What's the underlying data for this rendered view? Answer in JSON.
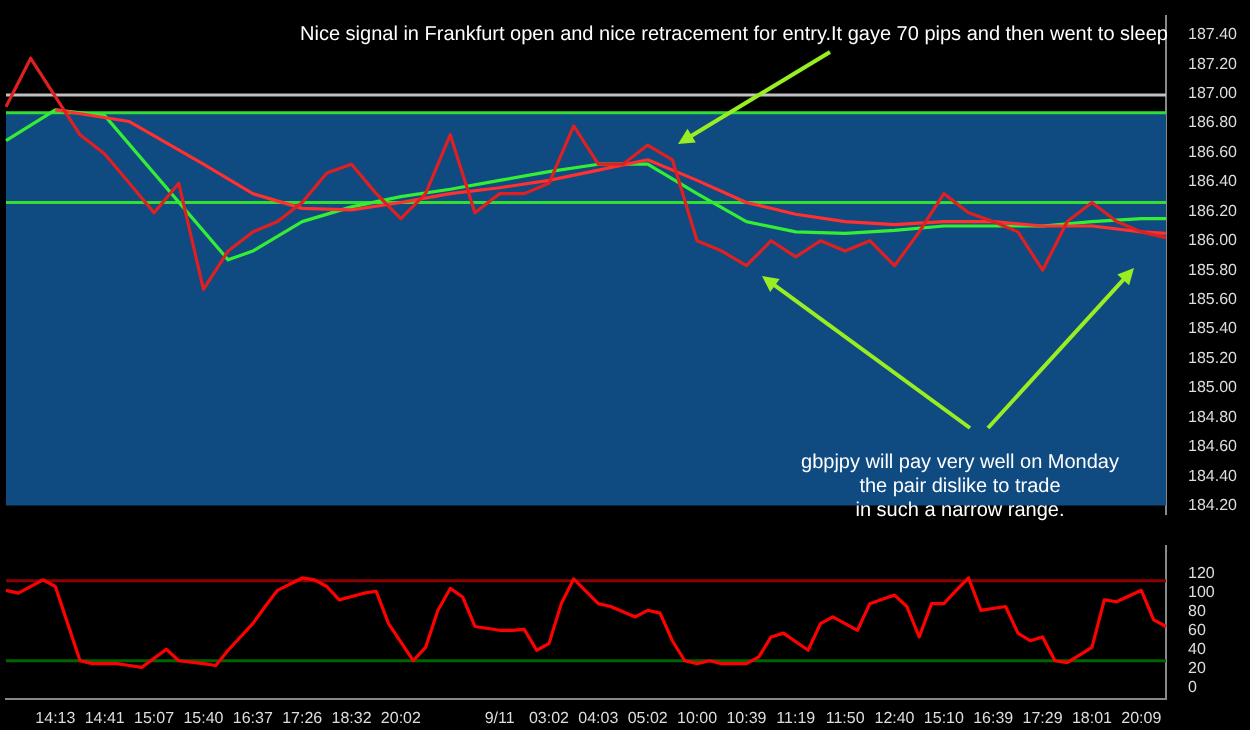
{
  "chart_data": [
    {
      "type": "line",
      "categories": [
        null,
        null,
        null,
        null,
        null,
        null,
        null,
        null,
        null,
        null,
        null,
        null,
        null,
        null,
        null,
        null,
        null,
        null,
        null,
        null,
        null,
        null,
        null,
        null,
        null,
        null,
        null,
        null,
        null,
        null,
        null,
        null,
        null,
        null,
        null,
        null,
        null,
        null,
        null,
        null,
        null,
        null,
        null,
        null,
        null,
        null,
        null,
        null
      ],
      "series": [
        {
          "color": "#e02020",
          "values": [
            186.91,
            187.24,
            186.98,
            186.72,
            186.59,
            186.39,
            186.19,
            186.39,
            185.67,
            185.93,
            186.06,
            186.13,
            186.26,
            186.46,
            186.52,
            186.32,
            186.15,
            186.32,
            186.72,
            186.19,
            186.32,
            186.32,
            186.39,
            186.78,
            186.52,
            186.52,
            186.65,
            186.55,
            186.0,
            185.93,
            185.83,
            186.0,
            185.89,
            186.0,
            185.93,
            186.0,
            185.83,
            186.06,
            186.32,
            186.19,
            186.13,
            186.06,
            185.8,
            186.13,
            186.26,
            186.13,
            186.06,
            186.02
          ]
        },
        {
          "color": "#ff3030",
          "values": [
            null,
            null,
            186.89,
            null,
            null,
            186.81,
            null,
            null,
            186.52,
            null,
            186.32,
            null,
            186.22,
            null,
            186.21,
            null,
            186.26,
            null,
            186.32,
            null,
            186.36,
            null,
            186.41,
            null,
            186.48,
            null,
            186.55,
            null,
            186.41,
            null,
            186.26,
            null,
            186.18,
            null,
            186.13,
            null,
            186.11,
            null,
            186.13,
            null,
            186.13,
            null,
            186.1,
            null,
            186.1,
            null,
            186.06,
            186.05
          ]
        },
        {
          "color": "#33ee33",
          "values": [
            186.68,
            null,
            186.89,
            null,
            186.85,
            null,
            null,
            null,
            null,
            185.87,
            185.93,
            null,
            186.13,
            null,
            186.23,
            null,
            186.3,
            null,
            186.35,
            null,
            186.41,
            null,
            186.47,
            null,
            186.52,
            null,
            186.52,
            null,
            186.32,
            null,
            186.13,
            null,
            186.06,
            null,
            186.05,
            null,
            186.07,
            null,
            186.1,
            null,
            186.1,
            null,
            186.1,
            null,
            186.13,
            null,
            186.15,
            186.15
          ]
        }
      ],
      "ylim": [
        184.14,
        187.53
      ],
      "yticks": [
        {
          "value": 187.4,
          "label": "187.40"
        },
        {
          "value": 187.2,
          "label": "187.20"
        },
        {
          "value": 187.0,
          "label": "187.00"
        },
        {
          "value": 186.8,
          "label": "186.80"
        },
        {
          "value": 186.6,
          "label": "186.60"
        },
        {
          "value": 186.4,
          "label": "186.40"
        },
        {
          "value": 186.2,
          "label": "186.20"
        },
        {
          "value": 186.0,
          "label": "186.00"
        },
        {
          "value": 185.8,
          "label": "185.80"
        },
        {
          "value": 185.6,
          "label": "185.60"
        },
        {
          "value": 185.4,
          "label": "185.40"
        },
        {
          "value": 185.2,
          "label": "185.20"
        },
        {
          "value": 185.0,
          "label": "185.00"
        },
        {
          "value": 184.8,
          "label": "184.80"
        },
        {
          "value": 184.6,
          "label": "184.60"
        },
        {
          "value": 184.4,
          "label": "184.40"
        },
        {
          "value": 184.2,
          "label": "184.20"
        }
      ],
      "ref_lines": [
        {
          "axis": "y",
          "value": 186.99,
          "color": "#c0c0c0"
        },
        {
          "axis": "y",
          "value": 186.87,
          "color": "#33dd33"
        },
        {
          "axis": "y",
          "value": 186.26,
          "color": "#33dd33"
        }
      ],
      "bands": [
        {
          "axis": "y",
          "from": 184.2,
          "to": 186.26,
          "color": "#0f4a80"
        },
        {
          "axis": "y",
          "from": 186.26,
          "to": 186.87,
          "color": "#0f4a80"
        }
      ],
      "annotations": [
        "Nice signal in Frankfurt open and nice retracement for entry.It gaye 70 pips and then went to sleep",
        "gbpjpy will pay very well on Monday\nthe pair dislike to trade\nin such a narrow range."
      ],
      "tick_labels": "y"
    },
    {
      "type": "line",
      "categories": [
        null,
        null,
        null,
        null,
        "14:13",
        null,
        null,
        null,
        "14:41",
        null,
        null,
        null,
        "15:07",
        null,
        null,
        null,
        "15:40",
        null,
        null,
        null,
        "16:37",
        null,
        null,
        null,
        "17:26",
        null,
        null,
        null,
        "18:32",
        null,
        null,
        null,
        "20:02",
        null,
        null,
        null,
        null,
        null,
        null,
        null,
        "9/11",
        null,
        null,
        null,
        "03:02",
        null,
        null,
        null,
        "04:03",
        null,
        null,
        null,
        "05:02",
        null,
        null,
        null,
        "10:00",
        null,
        null,
        null,
        "10:39",
        null,
        null,
        null,
        "11:19",
        null,
        null,
        null,
        "11:50",
        null,
        null,
        null,
        "12:40",
        null,
        null,
        null,
        "15:10",
        null,
        null,
        null,
        "16:39",
        null,
        null,
        null,
        "17:29",
        null,
        null,
        null,
        "18:01",
        null,
        null,
        null,
        "20:09",
        null,
        null
      ],
      "series": [
        {
          "color": "#ff0000",
          "values": [
            102,
            99,
            null,
            113,
            106,
            67,
            28,
            25,
            null,
            25,
            23,
            21,
            null,
            40,
            28,
            null,
            25,
            23,
            39,
            null,
            67,
            85,
            102,
            null,
            115,
            113,
            106,
            92,
            null,
            99,
            101,
            67,
            null,
            28,
            42,
            81,
            104,
            95,
            64,
            null,
            60,
            60,
            61,
            39,
            46,
            88,
            114,
            null,
            88,
            85,
            null,
            74,
            81,
            78,
            49,
            28,
            25,
            28,
            25,
            null,
            25,
            32,
            53,
            57,
            null,
            39,
            67,
            74,
            null,
            60,
            88,
            null,
            97,
            85,
            53,
            88,
            88,
            102,
            115,
            81,
            null,
            85,
            57,
            49,
            53,
            28,
            26,
            null,
            42,
            92,
            90,
            null,
            102,
            71,
            64
          ]
        }
      ],
      "ylim": [
        -12,
        149
      ],
      "yticks": [
        0,
        20,
        40,
        60,
        80,
        100,
        120
      ],
      "ref_lines": [
        {
          "axis": "y",
          "value": 112,
          "color": "#8b0000"
        },
        {
          "axis": "y",
          "value": 28,
          "color": "#006400"
        }
      ]
    }
  ]
}
